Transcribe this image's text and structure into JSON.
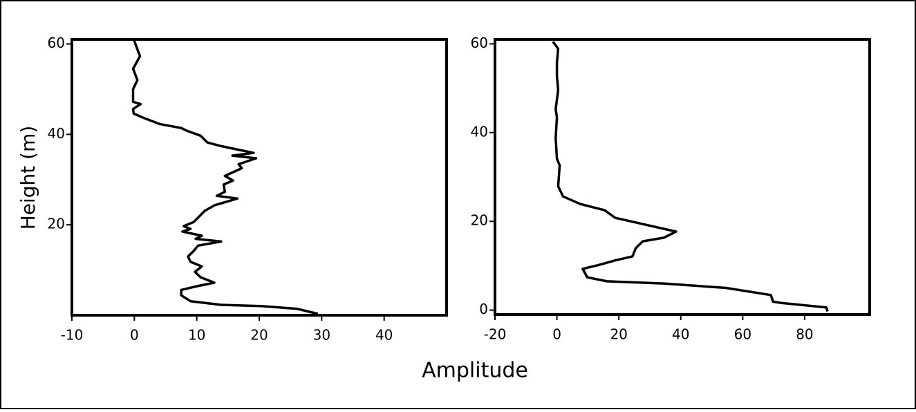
{
  "ylabel": "Height (m)",
  "xlabel": "Amplitude",
  "chart_data": [
    {
      "type": "line",
      "color": "#000000",
      "xlim": [
        -10,
        50
      ],
      "ylim": [
        0,
        61
      ],
      "xticks": [
        -10,
        0,
        10,
        20,
        30,
        40
      ],
      "yticks": [
        20,
        40,
        60
      ],
      "x": [
        -0.1,
        0.9,
        -0.2,
        0.5,
        -0.2,
        -0.2,
        1,
        -0.2,
        -0.1,
        1.2,
        4,
        7.5,
        8.4,
        10.6,
        11.7,
        13.9,
        19.1,
        15.7,
        19.5,
        16.7,
        17.2,
        14.5,
        15.8,
        14.3,
        14.5,
        13.2,
        16.5,
        12.8,
        11.3,
        9.5,
        7.9,
        9,
        7.7,
        10.8,
        9.8,
        13.9,
        10.2,
        9.5,
        8.6,
        9,
        10.8,
        9.7,
        10.6,
        12.8,
        10,
        7.5,
        7.5,
        9,
        13.9,
        20.6,
        26.1,
        29.4
      ],
      "values": [
        61,
        57.3,
        54.5,
        52,
        50,
        47.2,
        46.7,
        45.6,
        44.6,
        43.8,
        42.3,
        41.4,
        40.8,
        39.7,
        38.2,
        37.4,
        35.9,
        35.3,
        34.7,
        33.4,
        32.5,
        30.8,
        29.8,
        28.9,
        27.3,
        26.4,
        25.8,
        24.3,
        23.1,
        20.6,
        19.7,
        19.1,
        18.5,
        17.6,
        16.9,
        16.3,
        15.4,
        14.2,
        13,
        11.8,
        10.8,
        9.6,
        8.4,
        7.2,
        6.4,
        5.6,
        4.4,
        3.1,
        2.3,
        2,
        1.4,
        0.3
      ]
    },
    {
      "type": "line",
      "color": "#000000",
      "xlim": [
        -20,
        101
      ],
      "ylim": [
        -1,
        61
      ],
      "xticks": [
        -20,
        0,
        20,
        40,
        60,
        80
      ],
      "yticks": [
        0,
        20,
        40,
        60
      ],
      "x": [
        -1.3,
        0.4,
        0,
        0,
        0.4,
        -0.4,
        0,
        -0.4,
        0,
        0.9,
        0.4,
        2,
        7.6,
        15.4,
        18.8,
        28.9,
        38.5,
        34.5,
        27.7,
        25.5,
        24.4,
        18.8,
        13.2,
        8.3,
        9.8,
        16.1,
        34.5,
        54.6,
        69.1,
        69.8,
        72.5,
        87,
        87.4
      ],
      "values": [
        60.5,
        58.9,
        55.8,
        52.7,
        49.6,
        45.3,
        43.4,
        38.8,
        34.1,
        32.6,
        27.9,
        25.6,
        23.9,
        22.5,
        20.8,
        19.2,
        17.7,
        16.3,
        15.5,
        14,
        12.1,
        11.2,
        10.1,
        9.3,
        7.4,
        6.5,
        6,
        5,
        3.4,
        1.9,
        1.6,
        0.6,
        -0.3
      ]
    }
  ]
}
